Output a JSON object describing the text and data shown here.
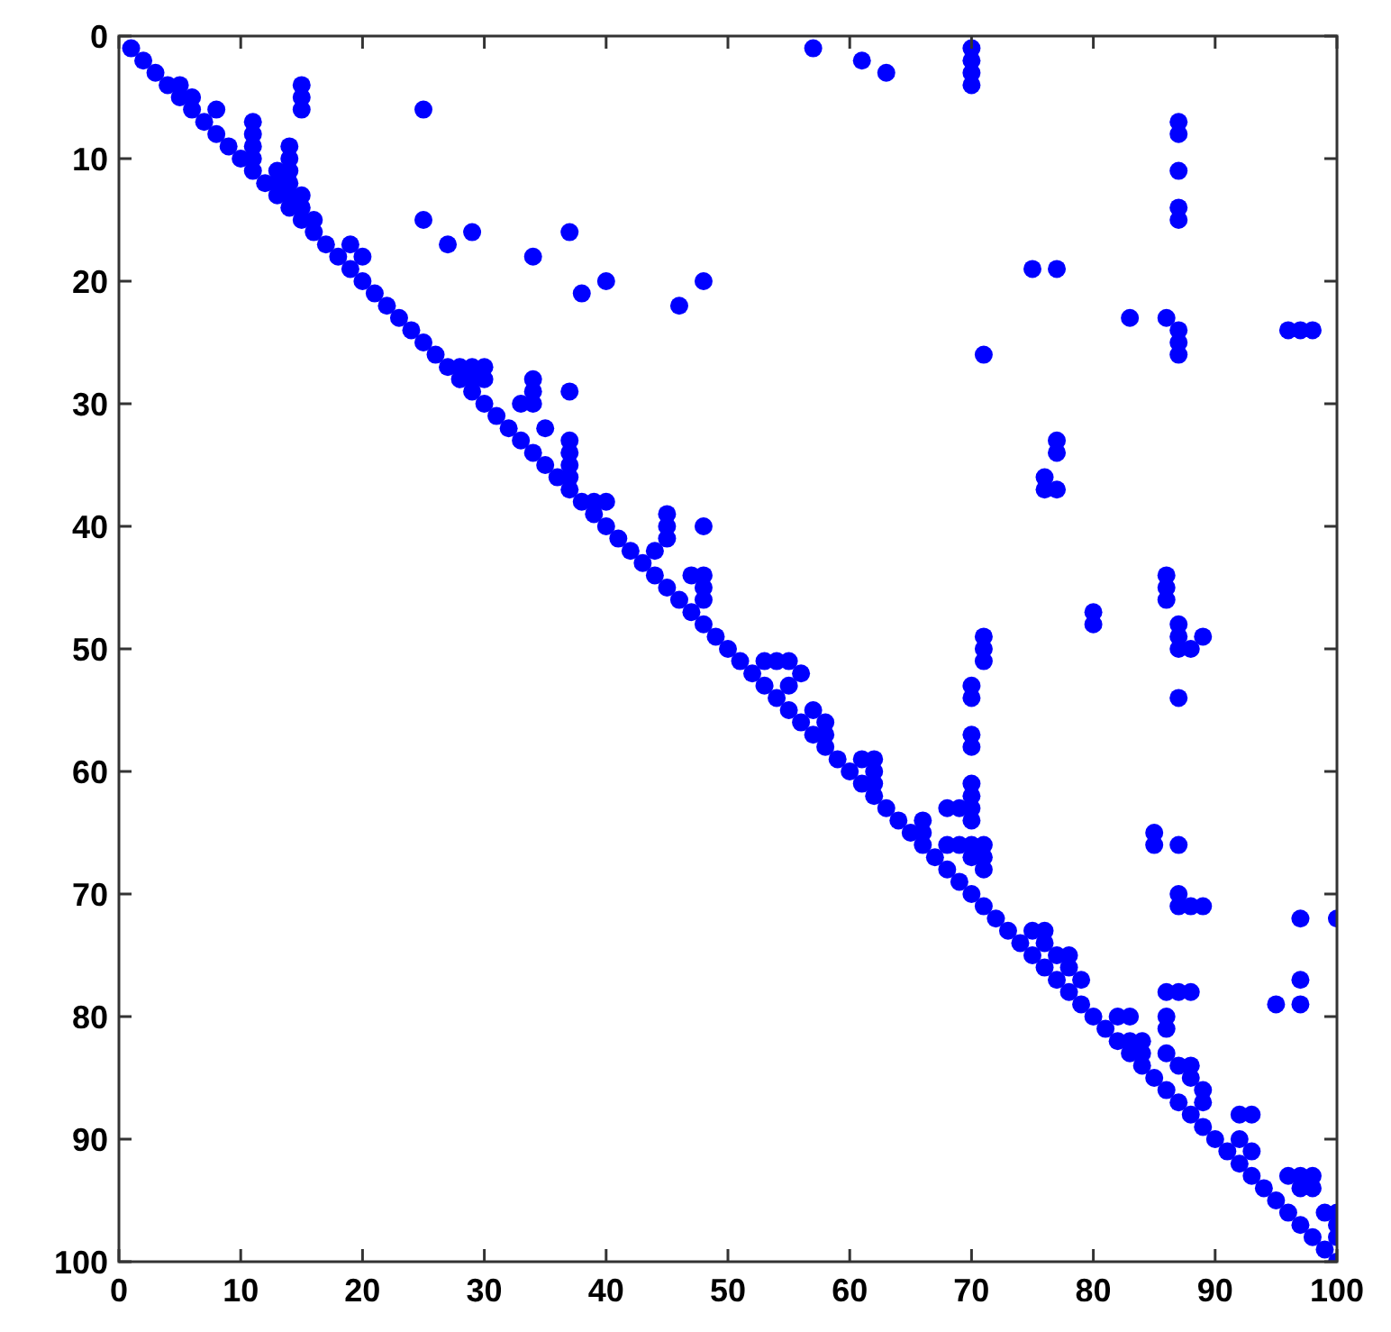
{
  "chart_data": {
    "type": "scatter",
    "marker": "circle",
    "xlim": [
      0,
      100
    ],
    "ylim": [
      100,
      0
    ],
    "xticks": [
      0,
      10,
      20,
      30,
      40,
      50,
      60,
      70,
      80,
      90,
      100
    ],
    "yticks": [
      0,
      10,
      20,
      30,
      40,
      50,
      60,
      70,
      80,
      90,
      100
    ],
    "grid": false,
    "series": [
      {
        "color": "#0000ff",
        "x": [
          1,
          2,
          3,
          4,
          5,
          6,
          7,
          8,
          9,
          10,
          11,
          12,
          13,
          14,
          15,
          16,
          17,
          18,
          19,
          20,
          21,
          22,
          23,
          24,
          25,
          26,
          27,
          28,
          29,
          30,
          31,
          32,
          33,
          34,
          35,
          36,
          37,
          38,
          39,
          40,
          41,
          42,
          43,
          44,
          45,
          46,
          47,
          48,
          49,
          50,
          51,
          52,
          53,
          54,
          55,
          56,
          57,
          58,
          59,
          60,
          61,
          62,
          63,
          64,
          65,
          66,
          67,
          68,
          69,
          70,
          71,
          72,
          73,
          74,
          75,
          76,
          77,
          78,
          79,
          80,
          81,
          82,
          83,
          84,
          85,
          86,
          87,
          88,
          89,
          90,
          91,
          92,
          93,
          94,
          95,
          96,
          97,
          98,
          99,
          100
        ],
        "values": [
          1,
          2,
          3,
          4,
          5,
          6,
          7,
          8,
          9,
          10,
          11,
          12,
          13,
          14,
          15,
          16,
          17,
          18,
          19,
          20,
          21,
          22,
          23,
          24,
          25,
          26,
          27,
          28,
          29,
          30,
          31,
          32,
          33,
          34,
          35,
          36,
          37,
          38,
          39,
          40,
          41,
          42,
          43,
          44,
          45,
          46,
          47,
          48,
          49,
          50,
          51,
          52,
          53,
          54,
          55,
          56,
          57,
          58,
          59,
          60,
          61,
          62,
          63,
          64,
          65,
          66,
          67,
          68,
          69,
          70,
          71,
          72,
          73,
          74,
          75,
          76,
          77,
          78,
          79,
          80,
          81,
          82,
          83,
          84,
          85,
          86,
          87,
          88,
          89,
          90,
          91,
          92,
          93,
          94,
          95,
          96,
          97,
          98,
          99,
          100
        ]
      },
      {
        "color": "#0000ff",
        "x": [
          57,
          61,
          63,
          70,
          70,
          70,
          70,
          15,
          15,
          15,
          25,
          87,
          87,
          87,
          87,
          87,
          11,
          11,
          14,
          14,
          14,
          25,
          27,
          29,
          34,
          37,
          38,
          40,
          46,
          48,
          75,
          77,
          83,
          86,
          87,
          87,
          87,
          96,
          97,
          98,
          71,
          34,
          34,
          37,
          37,
          37,
          77,
          77,
          76,
          76,
          77,
          45,
          45,
          48,
          86,
          86,
          86,
          87,
          87,
          87,
          88,
          89,
          80,
          80,
          71,
          71,
          71,
          70,
          70,
          70,
          70,
          87,
          70,
          70,
          70,
          68,
          69,
          70,
          85,
          85,
          87,
          87,
          87,
          88,
          89,
          97,
          100,
          95,
          97,
          97,
          86,
          87,
          88,
          86,
          86,
          86,
          79,
          5,
          6,
          8,
          11,
          11,
          13,
          13,
          14,
          14,
          15,
          15,
          16,
          19,
          20,
          28,
          29,
          30,
          29,
          30,
          33,
          34,
          35,
          37,
          37,
          39,
          40,
          44,
          45,
          47,
          48,
          48,
          48,
          53,
          54,
          55,
          55,
          56,
          57,
          58,
          58,
          61,
          62,
          62,
          62,
          66,
          66,
          68,
          69,
          70,
          71,
          70,
          71,
          71,
          75,
          76,
          76,
          77,
          78,
          78,
          82,
          83,
          83,
          84,
          84,
          87,
          88,
          88,
          89,
          89,
          92,
          93,
          92,
          93,
          96,
          97,
          97,
          98,
          98,
          99,
          100,
          100,
          100
        ],
        "values": [
          1,
          2,
          3,
          1,
          2,
          3,
          4,
          4,
          5,
          6,
          6,
          7,
          8,
          11,
          14,
          15,
          7,
          8,
          9,
          10,
          11,
          15,
          17,
          16,
          18,
          16,
          21,
          20,
          22,
          20,
          19,
          19,
          23,
          23,
          24,
          25,
          26,
          24,
          24,
          24,
          26,
          28,
          29,
          29,
          33,
          34,
          33,
          34,
          36,
          37,
          37,
          39,
          40,
          40,
          44,
          45,
          46,
          48,
          49,
          50,
          50,
          49,
          47,
          48,
          49,
          50,
          51,
          53,
          54,
          57,
          58,
          54,
          61,
          62,
          63,
          63,
          63,
          64,
          65,
          66,
          66,
          70,
          71,
          71,
          71,
          72,
          72,
          79,
          77,
          79,
          78,
          78,
          78,
          80,
          81,
          83,
          77,
          4,
          5,
          6,
          9,
          10,
          11,
          12,
          12,
          13,
          13,
          14,
          15,
          17,
          18,
          27,
          27,
          27,
          28,
          28,
          30,
          30,
          32,
          35,
          36,
          38,
          38,
          42,
          41,
          44,
          44,
          45,
          46,
          51,
          51,
          51,
          53,
          52,
          55,
          56,
          57,
          59,
          59,
          60,
          61,
          64,
          65,
          66,
          66,
          66,
          66,
          67,
          67,
          68,
          73,
          73,
          74,
          75,
          75,
          76,
          80,
          80,
          82,
          82,
          83,
          84,
          84,
          85,
          86,
          87,
          88,
          88,
          90,
          91,
          93,
          93,
          94,
          93,
          94,
          96,
          96,
          97,
          98
        ]
      }
    ]
  }
}
